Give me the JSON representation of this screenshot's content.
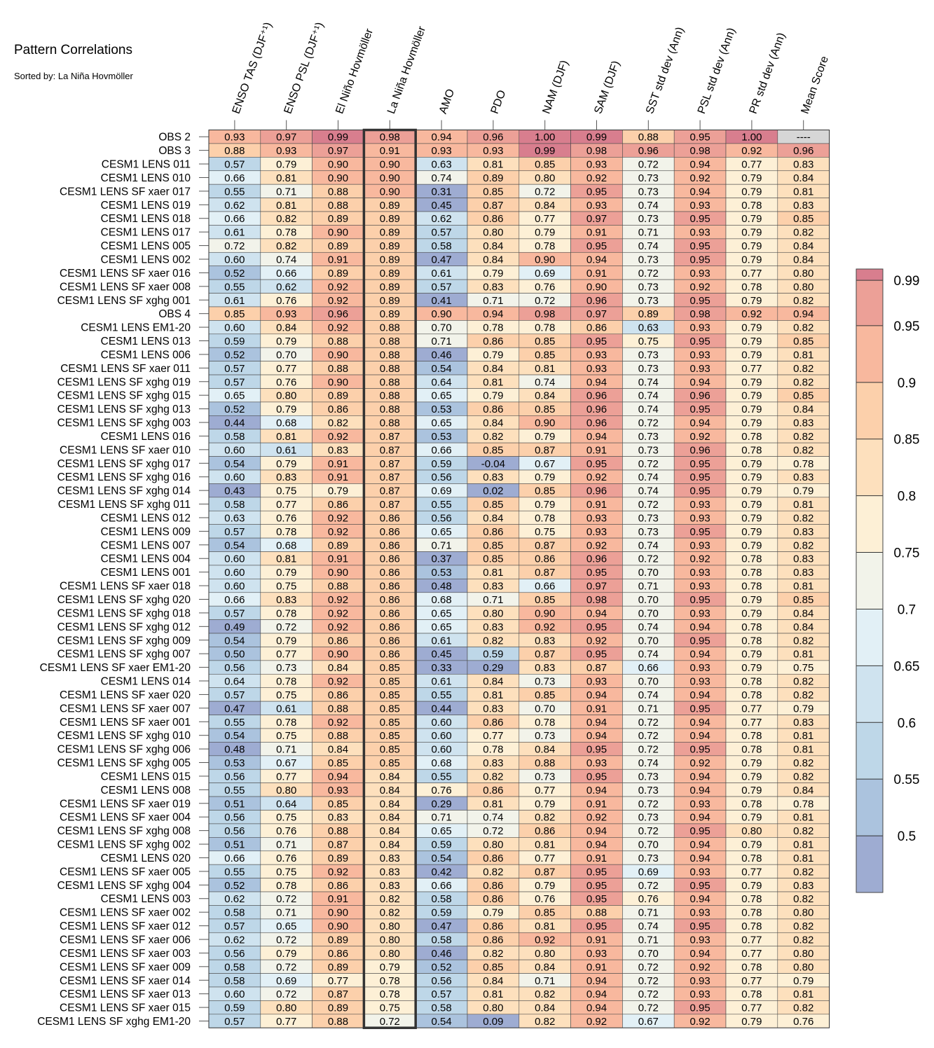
{
  "header": {
    "title": "Pattern Correlations",
    "subtitle": "Sorted by: La Niña Hovmöller"
  },
  "chart_data": {
    "type": "heatmap",
    "columns": [
      "ENSO TAS (DJF⁺¹)",
      "ENSO PSL (DJF⁺¹)",
      "El Niño Hovmöller",
      "La Niña Hovmöller",
      "AMO",
      "PDO",
      "NAM (DJF)",
      "SAM (DJF)",
      "SST std dev (Ann)",
      "PSL std dev (Ann)",
      "PR std dev (Ann)",
      "Mean Score"
    ],
    "highlighted_column": "La Niña Hovmöller",
    "missing_label": "----",
    "rows": [
      {
        "label": "OBS 2",
        "values": [
          0.93,
          0.97,
          0.99,
          0.98,
          0.94,
          0.96,
          1.0,
          0.99,
          0.88,
          0.95,
          1.0,
          null
        ]
      },
      {
        "label": "OBS 3",
        "values": [
          0.88,
          0.93,
          0.97,
          0.91,
          0.93,
          0.93,
          0.99,
          0.98,
          0.96,
          0.98,
          0.92,
          0.96
        ]
      },
      {
        "label": "CESM1 LENS 011",
        "values": [
          0.57,
          0.79,
          0.9,
          0.9,
          0.63,
          0.81,
          0.85,
          0.93,
          0.72,
          0.94,
          0.77,
          0.83
        ]
      },
      {
        "label": "CESM1 LENS 010",
        "values": [
          0.66,
          0.81,
          0.9,
          0.9,
          0.74,
          0.89,
          0.8,
          0.92,
          0.73,
          0.92,
          0.79,
          0.84
        ]
      },
      {
        "label": "CESM1 LENS SF xaer 017",
        "values": [
          0.55,
          0.71,
          0.88,
          0.9,
          0.31,
          0.85,
          0.72,
          0.95,
          0.73,
          0.94,
          0.79,
          0.81
        ]
      },
      {
        "label": "CESM1 LENS 019",
        "values": [
          0.62,
          0.81,
          0.88,
          0.89,
          0.45,
          0.87,
          0.84,
          0.93,
          0.74,
          0.93,
          0.78,
          0.83
        ]
      },
      {
        "label": "CESM1 LENS 018",
        "values": [
          0.66,
          0.82,
          0.89,
          0.89,
          0.62,
          0.86,
          0.77,
          0.97,
          0.73,
          0.95,
          0.79,
          0.85
        ]
      },
      {
        "label": "CESM1 LENS 017",
        "values": [
          0.61,
          0.78,
          0.9,
          0.89,
          0.57,
          0.8,
          0.79,
          0.91,
          0.71,
          0.93,
          0.79,
          0.82
        ]
      },
      {
        "label": "CESM1 LENS 005",
        "values": [
          0.72,
          0.82,
          0.89,
          0.89,
          0.58,
          0.84,
          0.78,
          0.95,
          0.74,
          0.95,
          0.79,
          0.84
        ]
      },
      {
        "label": "CESM1 LENS 002",
        "values": [
          0.6,
          0.74,
          0.91,
          0.89,
          0.47,
          0.84,
          0.9,
          0.94,
          0.73,
          0.95,
          0.79,
          0.84
        ]
      },
      {
        "label": "CESM1 LENS SF xaer 016",
        "values": [
          0.52,
          0.66,
          0.89,
          0.89,
          0.61,
          0.79,
          0.69,
          0.91,
          0.72,
          0.93,
          0.77,
          0.8
        ]
      },
      {
        "label": "CESM1 LENS SF xaer 008",
        "values": [
          0.55,
          0.62,
          0.92,
          0.89,
          0.57,
          0.83,
          0.76,
          0.9,
          0.73,
          0.92,
          0.78,
          0.8
        ]
      },
      {
        "label": "CESM1 LENS SF xghg 001",
        "values": [
          0.61,
          0.76,
          0.92,
          0.89,
          0.41,
          0.71,
          0.72,
          0.96,
          0.73,
          0.95,
          0.79,
          0.82
        ]
      },
      {
        "label": "OBS 4",
        "values": [
          0.85,
          0.93,
          0.96,
          0.89,
          0.9,
          0.94,
          0.98,
          0.97,
          0.89,
          0.98,
          0.92,
          0.94
        ]
      },
      {
        "label": "CESM1 LENS EM1-20",
        "values": [
          0.6,
          0.84,
          0.92,
          0.88,
          0.7,
          0.78,
          0.78,
          0.86,
          0.63,
          0.93,
          0.79,
          0.82
        ]
      },
      {
        "label": "CESM1 LENS 013",
        "values": [
          0.59,
          0.79,
          0.88,
          0.88,
          0.71,
          0.86,
          0.85,
          0.95,
          0.75,
          0.95,
          0.79,
          0.85
        ]
      },
      {
        "label": "CESM1 LENS 006",
        "values": [
          0.52,
          0.7,
          0.9,
          0.88,
          0.46,
          0.79,
          0.85,
          0.93,
          0.73,
          0.93,
          0.79,
          0.81
        ]
      },
      {
        "label": "CESM1 LENS SF xaer 011",
        "values": [
          0.57,
          0.77,
          0.88,
          0.88,
          0.54,
          0.84,
          0.81,
          0.93,
          0.73,
          0.93,
          0.77,
          0.82
        ]
      },
      {
        "label": "CESM1 LENS SF xghg 019",
        "values": [
          0.57,
          0.76,
          0.9,
          0.88,
          0.64,
          0.81,
          0.74,
          0.94,
          0.74,
          0.94,
          0.79,
          0.82
        ]
      },
      {
        "label": "CESM1 LENS SF xghg 015",
        "values": [
          0.65,
          0.8,
          0.89,
          0.88,
          0.65,
          0.79,
          0.84,
          0.96,
          0.74,
          0.96,
          0.79,
          0.85
        ]
      },
      {
        "label": "CESM1 LENS SF xghg 013",
        "values": [
          0.52,
          0.79,
          0.86,
          0.88,
          0.53,
          0.86,
          0.85,
          0.96,
          0.74,
          0.95,
          0.79,
          0.84
        ]
      },
      {
        "label": "CESM1 LENS SF xghg 003",
        "values": [
          0.44,
          0.68,
          0.82,
          0.88,
          0.65,
          0.84,
          0.9,
          0.96,
          0.72,
          0.94,
          0.79,
          0.83
        ]
      },
      {
        "label": "CESM1 LENS 016",
        "values": [
          0.58,
          0.81,
          0.92,
          0.87,
          0.53,
          0.82,
          0.79,
          0.94,
          0.73,
          0.92,
          0.78,
          0.82
        ]
      },
      {
        "label": "CESM1 LENS SF xaer 010",
        "values": [
          0.6,
          0.61,
          0.83,
          0.87,
          0.66,
          0.85,
          0.87,
          0.91,
          0.73,
          0.96,
          0.78,
          0.82
        ]
      },
      {
        "label": "CESM1 LENS SF xghg 017",
        "values": [
          0.54,
          0.79,
          0.91,
          0.87,
          0.59,
          -0.04,
          0.67,
          0.95,
          0.72,
          0.95,
          0.79,
          0.78
        ]
      },
      {
        "label": "CESM1 LENS SF xghg 016",
        "values": [
          0.6,
          0.83,
          0.91,
          0.87,
          0.56,
          0.83,
          0.79,
          0.92,
          0.74,
          0.95,
          0.79,
          0.83
        ]
      },
      {
        "label": "CESM1 LENS SF xghg 014",
        "values": [
          0.43,
          0.75,
          0.79,
          0.87,
          0.69,
          0.02,
          0.85,
          0.96,
          0.74,
          0.95,
          0.79,
          0.79
        ]
      },
      {
        "label": "CESM1 LENS SF xghg 011",
        "values": [
          0.58,
          0.77,
          0.86,
          0.87,
          0.55,
          0.85,
          0.79,
          0.91,
          0.72,
          0.93,
          0.79,
          0.81
        ]
      },
      {
        "label": "CESM1 LENS 012",
        "values": [
          0.63,
          0.76,
          0.92,
          0.86,
          0.56,
          0.84,
          0.78,
          0.93,
          0.73,
          0.93,
          0.79,
          0.82
        ]
      },
      {
        "label": "CESM1 LENS 009",
        "values": [
          0.57,
          0.78,
          0.92,
          0.86,
          0.65,
          0.86,
          0.75,
          0.93,
          0.73,
          0.95,
          0.79,
          0.83
        ]
      },
      {
        "label": "CESM1 LENS 007",
        "values": [
          0.54,
          0.68,
          0.89,
          0.86,
          0.71,
          0.85,
          0.87,
          0.92,
          0.74,
          0.93,
          0.79,
          0.82
        ]
      },
      {
        "label": "CESM1 LENS 004",
        "values": [
          0.6,
          0.81,
          0.91,
          0.86,
          0.37,
          0.85,
          0.86,
          0.96,
          0.72,
          0.92,
          0.78,
          0.83
        ]
      },
      {
        "label": "CESM1 LENS 001",
        "values": [
          0.6,
          0.79,
          0.9,
          0.86,
          0.53,
          0.81,
          0.87,
          0.95,
          0.7,
          0.93,
          0.78,
          0.83
        ]
      },
      {
        "label": "CESM1 LENS SF xaer 018",
        "values": [
          0.6,
          0.75,
          0.88,
          0.86,
          0.48,
          0.83,
          0.66,
          0.97,
          0.71,
          0.93,
          0.78,
          0.81
        ]
      },
      {
        "label": "CESM1 LENS SF xghg 020",
        "values": [
          0.66,
          0.83,
          0.92,
          0.86,
          0.68,
          0.71,
          0.85,
          0.98,
          0.7,
          0.95,
          0.79,
          0.85
        ]
      },
      {
        "label": "CESM1 LENS SF xghg 018",
        "values": [
          0.57,
          0.78,
          0.92,
          0.86,
          0.65,
          0.8,
          0.9,
          0.94,
          0.7,
          0.93,
          0.79,
          0.84
        ]
      },
      {
        "label": "CESM1 LENS SF xghg 012",
        "values": [
          0.49,
          0.72,
          0.92,
          0.86,
          0.65,
          0.83,
          0.92,
          0.95,
          0.74,
          0.94,
          0.78,
          0.84
        ]
      },
      {
        "label": "CESM1 LENS SF xghg 009",
        "values": [
          0.54,
          0.79,
          0.86,
          0.86,
          0.61,
          0.82,
          0.83,
          0.92,
          0.7,
          0.95,
          0.78,
          0.82
        ]
      },
      {
        "label": "CESM1 LENS SF xghg 007",
        "values": [
          0.5,
          0.77,
          0.9,
          0.86,
          0.45,
          0.59,
          0.87,
          0.95,
          0.74,
          0.94,
          0.79,
          0.81
        ]
      },
      {
        "label": "CESM1 LENS SF xaer EM1-20",
        "values": [
          0.56,
          0.73,
          0.84,
          0.85,
          0.33,
          0.29,
          0.83,
          0.87,
          0.66,
          0.93,
          0.79,
          0.75
        ]
      },
      {
        "label": "CESM1 LENS 014",
        "values": [
          0.64,
          0.78,
          0.92,
          0.85,
          0.61,
          0.84,
          0.73,
          0.93,
          0.7,
          0.93,
          0.78,
          0.82
        ]
      },
      {
        "label": "CESM1 LENS SF xaer 020",
        "values": [
          0.57,
          0.75,
          0.86,
          0.85,
          0.55,
          0.81,
          0.85,
          0.94,
          0.74,
          0.94,
          0.78,
          0.82
        ]
      },
      {
        "label": "CESM1 LENS SF xaer 007",
        "values": [
          0.47,
          0.61,
          0.88,
          0.85,
          0.44,
          0.83,
          0.7,
          0.91,
          0.71,
          0.95,
          0.77,
          0.79
        ]
      },
      {
        "label": "CESM1 LENS SF xaer 001",
        "values": [
          0.55,
          0.78,
          0.92,
          0.85,
          0.6,
          0.86,
          0.78,
          0.94,
          0.72,
          0.94,
          0.77,
          0.83
        ]
      },
      {
        "label": "CESM1 LENS SF xghg 010",
        "values": [
          0.54,
          0.75,
          0.88,
          0.85,
          0.6,
          0.77,
          0.73,
          0.94,
          0.72,
          0.94,
          0.78,
          0.81
        ]
      },
      {
        "label": "CESM1 LENS SF xghg 006",
        "values": [
          0.48,
          0.71,
          0.84,
          0.85,
          0.6,
          0.78,
          0.84,
          0.95,
          0.72,
          0.95,
          0.78,
          0.81
        ]
      },
      {
        "label": "CESM1 LENS SF xghg 005",
        "values": [
          0.53,
          0.67,
          0.85,
          0.85,
          0.68,
          0.83,
          0.88,
          0.93,
          0.74,
          0.92,
          0.79,
          0.82
        ]
      },
      {
        "label": "CESM1 LENS 015",
        "values": [
          0.56,
          0.77,
          0.94,
          0.84,
          0.55,
          0.82,
          0.73,
          0.95,
          0.73,
          0.94,
          0.79,
          0.82
        ]
      },
      {
        "label": "CESM1 LENS 008",
        "values": [
          0.55,
          0.8,
          0.93,
          0.84,
          0.76,
          0.86,
          0.77,
          0.94,
          0.73,
          0.94,
          0.79,
          0.84
        ]
      },
      {
        "label": "CESM1 LENS SF xaer 019",
        "values": [
          0.51,
          0.64,
          0.85,
          0.84,
          0.29,
          0.81,
          0.79,
          0.91,
          0.72,
          0.93,
          0.78,
          0.78
        ]
      },
      {
        "label": "CESM1 LENS SF xaer 004",
        "values": [
          0.56,
          0.75,
          0.83,
          0.84,
          0.71,
          0.74,
          0.82,
          0.92,
          0.73,
          0.94,
          0.79,
          0.81
        ]
      },
      {
        "label": "CESM1 LENS SF xghg 008",
        "values": [
          0.56,
          0.76,
          0.88,
          0.84,
          0.65,
          0.72,
          0.86,
          0.94,
          0.72,
          0.95,
          0.8,
          0.82
        ]
      },
      {
        "label": "CESM1 LENS SF xghg 002",
        "values": [
          0.51,
          0.71,
          0.87,
          0.84,
          0.59,
          0.8,
          0.81,
          0.94,
          0.7,
          0.94,
          0.79,
          0.81
        ]
      },
      {
        "label": "CESM1 LENS 020",
        "values": [
          0.66,
          0.76,
          0.89,
          0.83,
          0.54,
          0.86,
          0.77,
          0.91,
          0.73,
          0.94,
          0.78,
          0.81
        ]
      },
      {
        "label": "CESM1 LENS SF xaer 005",
        "values": [
          0.55,
          0.75,
          0.92,
          0.83,
          0.42,
          0.82,
          0.87,
          0.95,
          0.69,
          0.93,
          0.77,
          0.82
        ]
      },
      {
        "label": "CESM1 LENS SF xghg 004",
        "values": [
          0.52,
          0.78,
          0.86,
          0.83,
          0.66,
          0.86,
          0.79,
          0.95,
          0.72,
          0.95,
          0.79,
          0.83
        ]
      },
      {
        "label": "CESM1 LENS 003",
        "values": [
          0.62,
          0.72,
          0.91,
          0.82,
          0.58,
          0.86,
          0.76,
          0.95,
          0.76,
          0.94,
          0.78,
          0.82
        ]
      },
      {
        "label": "CESM1 LENS SF xaer 002",
        "values": [
          0.58,
          0.71,
          0.9,
          0.82,
          0.59,
          0.79,
          0.85,
          0.88,
          0.71,
          0.93,
          0.78,
          0.8
        ]
      },
      {
        "label": "CESM1 LENS SF xaer 012",
        "values": [
          0.57,
          0.65,
          0.9,
          0.8,
          0.47,
          0.86,
          0.81,
          0.95,
          0.74,
          0.95,
          0.78,
          0.82
        ]
      },
      {
        "label": "CESM1 LENS SF xaer 006",
        "values": [
          0.62,
          0.72,
          0.89,
          0.8,
          0.58,
          0.86,
          0.92,
          0.91,
          0.71,
          0.93,
          0.77,
          0.82
        ]
      },
      {
        "label": "CESM1 LENS SF xaer 003",
        "values": [
          0.56,
          0.79,
          0.86,
          0.8,
          0.46,
          0.82,
          0.8,
          0.93,
          0.7,
          0.94,
          0.77,
          0.8
        ]
      },
      {
        "label": "CESM1 LENS SF xaer 009",
        "values": [
          0.58,
          0.72,
          0.89,
          0.79,
          0.52,
          0.85,
          0.84,
          0.91,
          0.72,
          0.92,
          0.78,
          0.8
        ]
      },
      {
        "label": "CESM1 LENS SF xaer 014",
        "values": [
          0.58,
          0.69,
          0.77,
          0.78,
          0.56,
          0.84,
          0.71,
          0.94,
          0.72,
          0.93,
          0.77,
          0.79
        ]
      },
      {
        "label": "CESM1 LENS SF xaer 013",
        "values": [
          0.6,
          0.72,
          0.87,
          0.78,
          0.57,
          0.81,
          0.82,
          0.94,
          0.72,
          0.93,
          0.78,
          0.81
        ]
      },
      {
        "label": "CESM1 LENS SF xaer 015",
        "values": [
          0.59,
          0.8,
          0.89,
          0.75,
          0.58,
          0.8,
          0.84,
          0.94,
          0.72,
          0.95,
          0.77,
          0.82
        ]
      },
      {
        "label": "CESM1 LENS SF xghg EM1-20",
        "values": [
          0.57,
          0.77,
          0.88,
          0.72,
          0.54,
          0.09,
          0.82,
          0.92,
          0.67,
          0.92,
          0.79,
          0.76
        ]
      }
    ],
    "colorbar": {
      "levels": [
        0.45,
        0.5,
        0.55,
        0.6,
        0.65,
        0.7,
        0.75,
        0.8,
        0.85,
        0.9,
        0.95,
        0.99,
        1.0
      ],
      "tick_labels": [
        "0.5",
        "0.55",
        "0.6",
        "0.65",
        "0.7",
        "0.75",
        "0.8",
        "0.85",
        "0.9",
        "0.95",
        "0.99"
      ],
      "colors": [
        "#9eacd2",
        "#abc3de",
        "#bed7e8",
        "#cfe3ef",
        "#e2f0f6",
        "#f2f3ea",
        "#fdf0d6",
        "#fde0bd",
        "#fcd0ab",
        "#f8b89e",
        "#eca097",
        "#d87e8e"
      ],
      "missing_color": "#d6d6d6"
    }
  }
}
